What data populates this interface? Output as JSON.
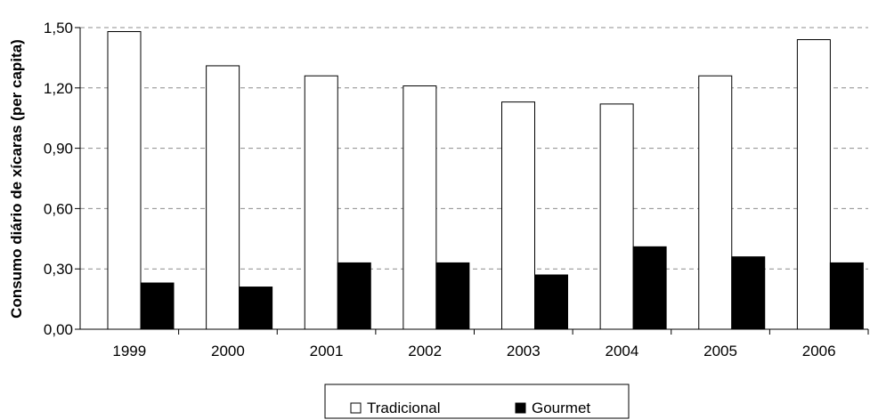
{
  "chart_data": {
    "type": "bar",
    "categories": [
      "1999",
      "2000",
      "2001",
      "2002",
      "2003",
      "2004",
      "2005",
      "2006"
    ],
    "series": [
      {
        "name": "Tradicional",
        "values": [
          1.48,
          1.31,
          1.26,
          1.21,
          1.13,
          1.12,
          1.26,
          1.44
        ],
        "color": "#ffffff"
      },
      {
        "name": "Gourmet",
        "values": [
          0.23,
          0.21,
          0.33,
          0.33,
          0.27,
          0.41,
          0.36,
          0.33
        ],
        "color": "#000000"
      }
    ],
    "ylabel": "Consumo diário de xícaras (per capita)",
    "xlabel": "",
    "ylim": [
      0,
      1.5
    ],
    "yticks": [
      "0,00",
      "0,30",
      "0,60",
      "0,90",
      "1,20",
      "1,50"
    ],
    "grid": "horizontal dashed",
    "legend_position": "bottom"
  }
}
